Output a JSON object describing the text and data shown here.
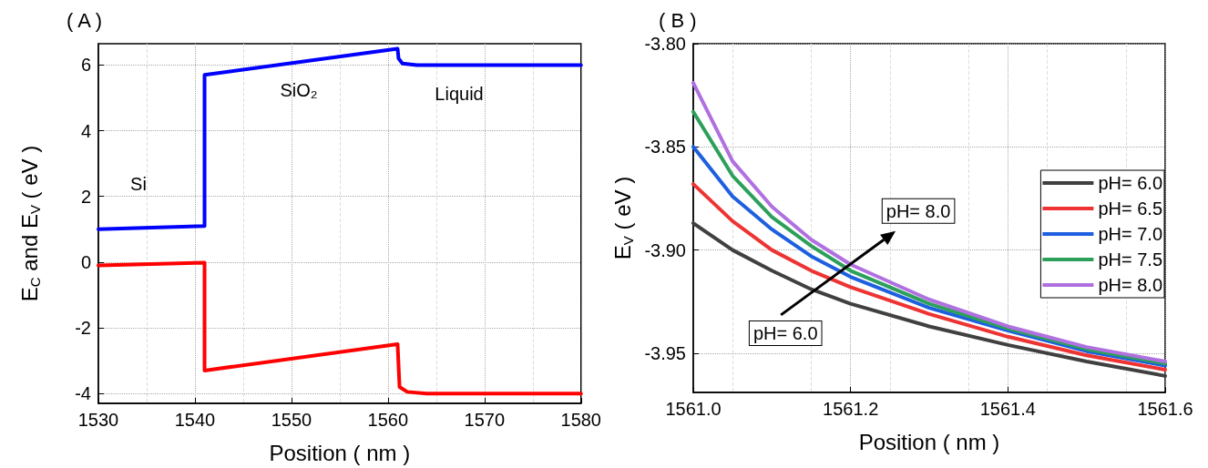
{
  "chart_data": [
    {
      "type": "line",
      "title": "( A )",
      "xlabel": "Position ( nm )",
      "ylabel": "E$_{C}$ and E$_{V}$ ( eV )",
      "xlim": [
        1530,
        1580
      ],
      "xticks": [
        1530,
        1540,
        1550,
        1560,
        1570,
        1580
      ],
      "ylim": [
        -4.3,
        6.65
      ],
      "yticks": [
        -4,
        -2,
        0,
        2,
        4,
        6
      ],
      "grid": true,
      "legend": false,
      "marker": "none",
      "line_style": "solid",
      "series": [
        {
          "color": "#0000ff",
          "x": [
            1530,
            1541,
            1541,
            1561,
            1561.1,
            1561.5,
            1563,
            1580
          ],
          "values": [
            1.0,
            1.1,
            5.7,
            6.5,
            6.2,
            6.05,
            6.0,
            6.0
          ]
        },
        {
          "color": "#ff0000",
          "x": [
            1530,
            1541,
            1541,
            1561,
            1561.2,
            1562,
            1564,
            1580
          ],
          "values": [
            -0.1,
            -0.02,
            -3.3,
            -2.5,
            -3.8,
            -3.95,
            -4.0,
            -4.0
          ]
        }
      ],
      "annotations": [
        "Si",
        "SiO₂",
        "Liquid"
      ]
    },
    {
      "type": "line",
      "title": "( B )",
      "xlabel": "Position ( nm )",
      "ylabel": "E$_{V}$ ( eV )",
      "xlim": [
        1561.0,
        1561.6
      ],
      "xticks": [
        {
          "value": 1561.0,
          "label": "1561.0"
        },
        1561.2,
        1561.4,
        1561.6
      ],
      "ylim": [
        -3.969,
        -3.8
      ],
      "yticks": [
        {
          "value": -3.8,
          "label": "-3.80"
        },
        -3.85,
        {
          "value": -3.9,
          "label": "-3.90"
        },
        -3.95
      ],
      "grid": true,
      "legend": "right",
      "marker": "none",
      "line_style": "solid",
      "x": [
        1561.0,
        1561.05,
        1561.1,
        1561.15,
        1561.2,
        1561.3,
        1561.4,
        1561.5,
        1561.6
      ],
      "series": [
        {
          "name": "pH= 6.0",
          "color": "#404040",
          "values": [
            -3.887,
            -3.9,
            -3.91,
            -3.919,
            -3.926,
            -3.937,
            -3.946,
            -3.954,
            -3.961
          ]
        },
        {
          "name": "pH= 6.5",
          "color": "#ee3333",
          "values": [
            -3.868,
            -3.886,
            -3.9,
            -3.91,
            -3.918,
            -3.931,
            -3.942,
            -3.951,
            -3.958
          ]
        },
        {
          "name": "pH= 7.0",
          "color": "#1e5fe0",
          "values": [
            -3.85,
            -3.874,
            -3.89,
            -3.903,
            -3.913,
            -3.928,
            -3.939,
            -3.949,
            -3.956
          ]
        },
        {
          "name": "pH= 7.5",
          "color": "#2ca05a",
          "values": [
            -3.833,
            -3.864,
            -3.884,
            -3.898,
            -3.91,
            -3.926,
            -3.938,
            -3.948,
            -3.955
          ]
        },
        {
          "name": "pH= 8.0",
          "color": "#b070e0",
          "values": [
            -3.819,
            -3.857,
            -3.879,
            -3.895,
            -3.907,
            -3.924,
            -3.937,
            -3.947,
            -3.954
          ]
        }
      ],
      "annotations": [
        "pH= 6.0",
        "pH= 8.0"
      ]
    }
  ]
}
